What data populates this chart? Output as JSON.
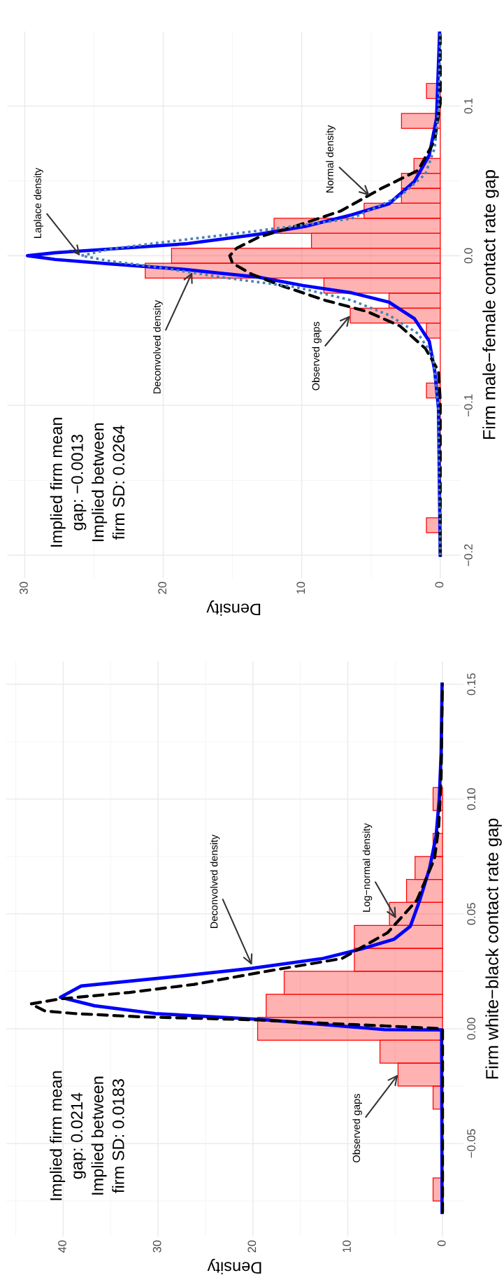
{
  "chart_data": [
    {
      "type": "histogram",
      "orientation": "horizontal",
      "xlabel": "Density",
      "ylabel": "Firm male−female contact rate gap",
      "color": "#ff0000",
      "grid": true,
      "bins": [
        -0.185,
        -0.175,
        -0.165,
        -0.155,
        -0.145,
        -0.135,
        -0.125,
        -0.115,
        -0.105,
        -0.095,
        -0.085,
        -0.075,
        -0.065,
        -0.055,
        -0.045,
        -0.035,
        -0.025,
        -0.015,
        -0.005,
        0.005,
        0.015,
        0.025,
        0.035,
        0.045,
        0.055,
        0.065,
        0.075,
        0.085,
        0.095,
        0.105,
        0.115
      ],
      "values": [
        1.0,
        0,
        0,
        0,
        0,
        0,
        0,
        0,
        0,
        1.0,
        0,
        0,
        0,
        1.0,
        6.5,
        3.7,
        8.4,
        21.3,
        19.4,
        9.3,
        12.0,
        5.5,
        2.8,
        2.8,
        1.9,
        0,
        0,
        2.8,
        0,
        1.0
      ],
      "series": [
        {
          "type": "line",
          "color": "#0000ff",
          "line_style": "solid",
          "x": [
            -0.2,
            -0.102,
            -0.077,
            -0.057,
            -0.042,
            -0.031,
            -0.0248,
            -0.0199,
            -0.0144,
            -0.0092,
            -0.0055,
            -0.0025,
            0.0,
            0.002,
            0.0045,
            0.0079,
            0.0144,
            0.0199,
            0.0273,
            0.0347,
            0.0496,
            0.067,
            0.0918,
            0.149
          ],
          "values": [
            0.0,
            0.13,
            0.4,
            0.8,
            1.87,
            3.7,
            6.4,
            9.9,
            13.1,
            18.4,
            23.8,
            27.8,
            29.8,
            27.8,
            23.8,
            18.4,
            13.1,
            9.6,
            6.4,
            3.7,
            1.87,
            0.8,
            0.27,
            0.05
          ]
        },
        {
          "type": "line",
          "color": "#000000",
          "line_style": "dashed",
          "x": [
            -0.2,
            -0.097,
            -0.077,
            -0.062,
            -0.047,
            -0.0372,
            -0.0298,
            -0.0199,
            -0.0124,
            -0.005,
            0.0,
            0.005,
            0.0124,
            0.0199,
            0.0298,
            0.0447,
            0.057,
            0.077,
            0.1017,
            0.149
          ],
          "values": [
            0.0,
            0.0,
            0.13,
            1.07,
            2.9,
            5.3,
            8.3,
            11.5,
            13.6,
            15.0,
            15.2,
            14.7,
            13.1,
            10.4,
            7.2,
            4.3,
            1.6,
            0.4,
            0.0,
            0.0
          ]
        },
        {
          "type": "line",
          "color": "#4682b4",
          "line_style": "dotted",
          "x": [
            -0.2,
            -0.102,
            -0.067,
            -0.052,
            -0.0397,
            -0.0298,
            -0.021,
            -0.0144,
            -0.0074,
            -0.0037,
            0.0,
            0.0045,
            0.0087,
            0.0136,
            0.0199,
            0.0248,
            0.0397,
            0.0546,
            0.072,
            0.097,
            0.149
          ],
          "values": [
            0.0,
            0.13,
            0.53,
            1.6,
            3.7,
            6.4,
            10.4,
            15.8,
            20.6,
            23.8,
            25.9,
            23.8,
            20.3,
            15.8,
            10.4,
            6.4,
            2.9,
            1.07,
            0.4,
            0.13,
            0.0
          ]
        }
      ],
      "xlim": [
        31.25,
        -1.46
      ],
      "xticks": [
        0,
        10,
        20,
        30
      ],
      "ylim": [
        -0.2153,
        0.1497
      ],
      "yticks": [
        {
          "value": -0.2,
          "label": "−0.2"
        },
        {
          "value": -0.1,
          "label": "−0.1"
        },
        {
          "value": 0.0,
          "label": "0.0"
        },
        {
          "value": 0.1,
          "label": "0.1"
        }
      ],
      "annotations": [
        "Implied firm mean\ngap: −0.0013\nImplied between\nfirm SD: 0.0264",
        {
          "text": "Laplace density",
          "x": 26.0,
          "y": 0.0
        },
        {
          "text": "Deconvolved density",
          "x": 17.9,
          "y": -0.011
        },
        {
          "text": "Observed gaps",
          "x": 6.5,
          "y": -0.04
        },
        {
          "text": "Normal density",
          "x": 5.1,
          "y": 0.04
        }
      ]
    },
    {
      "type": "histogram",
      "orientation": "horizontal",
      "xlabel": "Density",
      "ylabel": "Firm white−black contact rate gap",
      "color": "#ff0000",
      "grid": true,
      "bins": [
        -0.075,
        -0.065,
        -0.055,
        -0.045,
        -0.035,
        -0.025,
        -0.015,
        -0.005,
        0.005,
        0.015,
        0.025,
        0.035,
        0.045,
        0.055,
        0.065,
        0.075,
        0.085,
        0.095,
        0.105
      ],
      "values": [
        1.0,
        0,
        0,
        0,
        1.0,
        4.7,
        6.6,
        19.5,
        18.6,
        16.7,
        9.3,
        9.3,
        5.6,
        3.8,
        2.9,
        1.0,
        0,
        1.0
      ],
      "series": [
        {
          "type": "line",
          "color": "#0000ff",
          "line_style": "solid",
          "x": [
            -0.08,
            -0.0005,
            -0.0004,
            0.004,
            0.0066,
            0.01,
            0.0137,
            0.0186,
            0.0221,
            0.0263,
            0.0306,
            0.0348,
            0.039,
            0.0446,
            0.056,
            0.07,
            0.084,
            0.1,
            0.12,
            0.15
          ],
          "values": [
            0.05,
            0.1,
            6.1,
            19.0,
            30.3,
            36.7,
            40.3,
            38.1,
            29.6,
            20.1,
            12.6,
            8.5,
            5.1,
            3.4,
            2.4,
            1.36,
            0.68,
            0.35,
            0.15,
            0.05
          ]
        },
        {
          "type": "line",
          "color": "#000000",
          "line_style": "dashed",
          "x": [
            -0.08,
            0.0,
            0.0012,
            0.0024,
            0.0038,
            0.0052,
            0.0066,
            0.0077,
            0.0108,
            0.013,
            0.0158,
            0.0193,
            0.0249,
            0.0306,
            0.0418,
            0.056,
            0.074,
            0.088,
            0.11,
            0.15
          ],
          "values": [
            0.0,
            0.0,
            6.0,
            12.6,
            19.4,
            32.0,
            38.8,
            41.9,
            43.4,
            40.3,
            33.0,
            26.2,
            18.7,
            10.6,
            5.8,
            2.7,
            0.85,
            0.4,
            0.15,
            0.02
          ]
        }
      ],
      "xlim": [
        46,
        -2.2
      ],
      "xticks": [
        0,
        10,
        20,
        30,
        40
      ],
      "ylim": [
        -0.0905,
        0.16
      ],
      "yticks": [
        {
          "value": -0.05,
          "label": "−0.05"
        },
        {
          "value": 0.0,
          "label": "0.00"
        },
        {
          "value": 0.05,
          "label": "0.05"
        },
        {
          "value": 0.1,
          "label": "0.10"
        },
        0.15
      ],
      "annotations": [
        "Implied firm mean\ngap: 0.0214\nImplied between\nfirm SD: 0.0183",
        {
          "text": "Observed gaps",
          "x": 4.7,
          "y": -0.02
        },
        {
          "text": "Deconvolved density",
          "x": 20.1,
          "y": 0.0277
        },
        {
          "text": "Log−normal density",
          "x": 4.9,
          "y": 0.048
        }
      ]
    }
  ]
}
